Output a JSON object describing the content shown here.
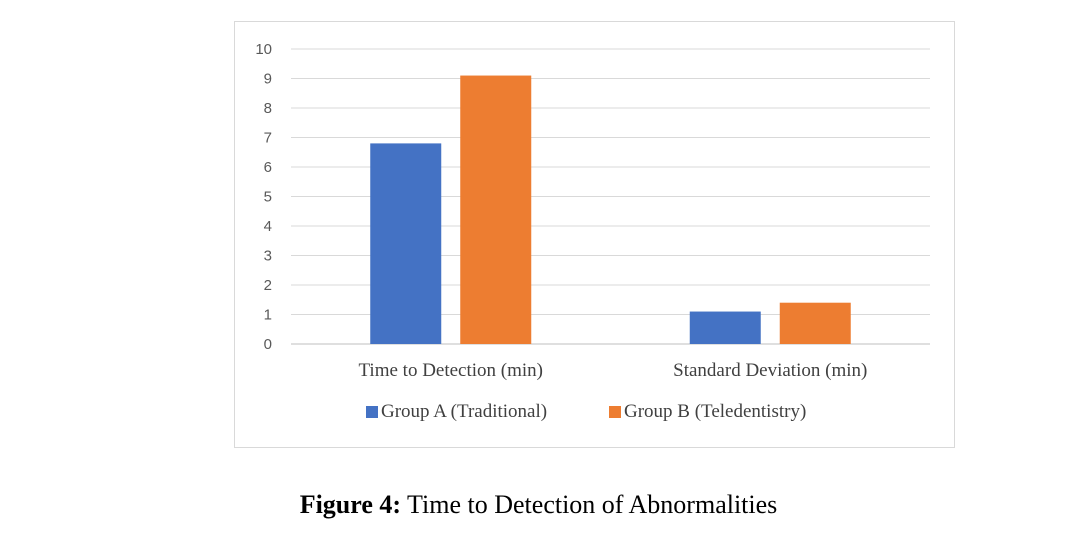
{
  "chart_data": {
    "type": "bar",
    "categories": [
      "Time to Detection (min)",
      "Standard Deviation (min)"
    ],
    "series": [
      {
        "name": "Group A (Traditional)",
        "values": [
          6.8,
          1.1
        ],
        "color": "#4472c4"
      },
      {
        "name": "Group B (Teledentistry)",
        "values": [
          9.1,
          1.4
        ],
        "color": "#ed7d31"
      }
    ],
    "yticks": [
      "0",
      "1",
      "2",
      "3",
      "4",
      "5",
      "6",
      "7",
      "8",
      "9",
      "10"
    ],
    "ylim": [
      0,
      10
    ],
    "grid": true,
    "legend_position": "bottom"
  },
  "caption": {
    "label": "Figure 4:",
    "text": " Time to Detection of Abnormalities"
  }
}
